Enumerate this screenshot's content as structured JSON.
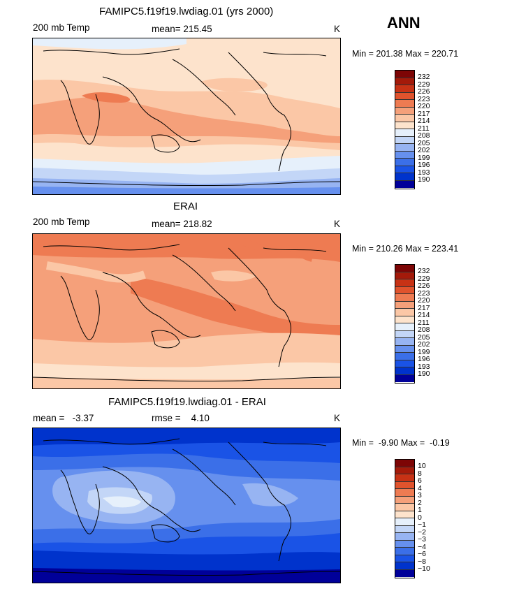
{
  "season": "ANN",
  "panels": [
    {
      "title": "FAMIPC5.f19f19.lwdiag.01 (yrs 2000)",
      "left": "200 mb Temp",
      "center": "mean= 215.45",
      "units": "K",
      "minmax": "Min = 201.38 Max = 220.71",
      "colors": [
        "#000099",
        "#0033cc",
        "#1a53e6",
        "#3b6fe8",
        "#6690ee",
        "#97b4f2",
        "#c3d6f7",
        "#e6f0fb",
        "#fde3cc",
        "#fbc7a6",
        "#f5a07a",
        "#ee7b52",
        "#e0532d",
        "#c73215",
        "#a41a0a",
        "#7d0505"
      ],
      "labels": [
        "232",
        "229",
        "226",
        "223",
        "220",
        "217",
        "214",
        "211",
        "208",
        "205",
        "202",
        "199",
        "196",
        "193",
        "190"
      ]
    },
    {
      "title": "ERAI",
      "left": "200 mb Temp",
      "center": "mean= 218.82",
      "units": "K",
      "minmax": "Min = 210.26 Max = 223.41",
      "colors": [
        "#000099",
        "#0033cc",
        "#1a53e6",
        "#3b6fe8",
        "#6690ee",
        "#97b4f2",
        "#c3d6f7",
        "#e6f0fb",
        "#fde3cc",
        "#fbc7a6",
        "#f5a07a",
        "#ee7b52",
        "#e0532d",
        "#c73215",
        "#a41a0a",
        "#7d0505"
      ],
      "labels": [
        "232",
        "229",
        "226",
        "223",
        "220",
        "217",
        "214",
        "211",
        "208",
        "205",
        "202",
        "199",
        "196",
        "193",
        "190"
      ]
    },
    {
      "title": "FAMIPC5.f19f19.lwdiag.01 - ERAI",
      "left": "mean =   -3.37",
      "center": "rmse =    4.10",
      "units": "K",
      "minmax": "Min =  -9.90 Max =  -0.19",
      "colors": [
        "#000099",
        "#0033cc",
        "#1a53e6",
        "#3b6fe8",
        "#6690ee",
        "#97b4f2",
        "#c3d6f7",
        "#e6f0fb",
        "#fde3cc",
        "#fbc7a6",
        "#f5a07a",
        "#ee7b52",
        "#e0532d",
        "#c73215",
        "#a41a0a",
        "#7d0505"
      ],
      "labels": [
        "10",
        "8",
        "6",
        "4",
        "3",
        "2",
        "1",
        "0",
        "−1",
        "−2",
        "−3",
        "−4",
        "−6",
        "−8",
        "−10"
      ]
    }
  ]
}
